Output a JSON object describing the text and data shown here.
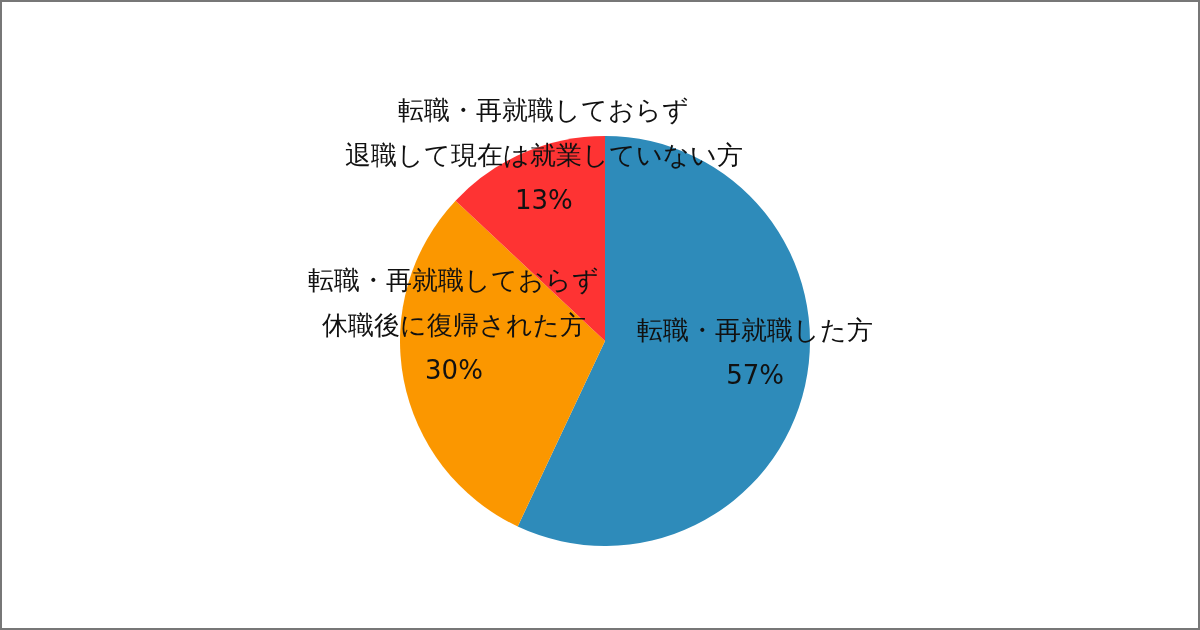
{
  "chart_data": {
    "type": "pie",
    "categories": [
      "転職・再就職した方",
      "転職・再就職しておらず休職後に復帰された方",
      "転職・再就職しておらず退職して現在は就業していない方"
    ],
    "values": [
      57,
      30,
      13
    ],
    "value_labels": [
      "57%",
      "30%",
      "13%"
    ],
    "colors": [
      "#2e8bba",
      "#fb9700",
      "#fe3333"
    ],
    "legend": false
  }
}
